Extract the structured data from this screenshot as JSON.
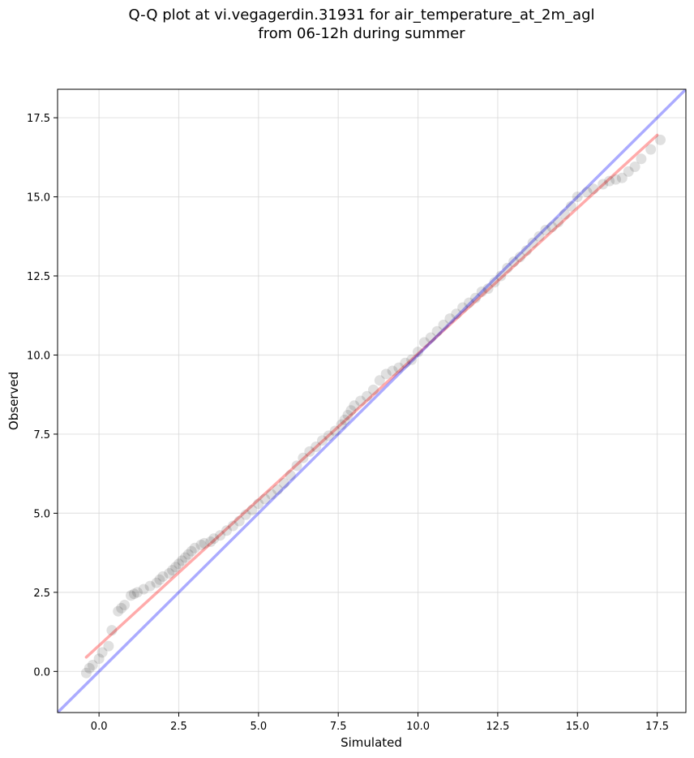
{
  "chart_data": {
    "type": "scatter",
    "title_lines": [
      "Q-Q plot at vi.vegagerdin.31931 for air_temperature_at_2m_agl",
      "from 06-12h during summer"
    ],
    "xlabel": "Simulated",
    "ylabel": "Observed",
    "xlim": [
      -1.3,
      18.4
    ],
    "ylim": [
      -1.3,
      18.4
    ],
    "xticks": [
      0.0,
      2.5,
      5.0,
      7.5,
      10.0,
      12.5,
      15.0,
      17.5
    ],
    "yticks": [
      0.0,
      2.5,
      5.0,
      7.5,
      10.0,
      12.5,
      15.0,
      17.5
    ],
    "xtick_labels": [
      "0.0",
      "2.5",
      "5.0",
      "7.5",
      "10.0",
      "12.5",
      "15.0",
      "17.5"
    ],
    "ytick_labels": [
      "0.0",
      "2.5",
      "5.0",
      "7.5",
      "10.0",
      "12.5",
      "15.0",
      "17.5"
    ],
    "grid": true,
    "series": [
      {
        "kind": "points",
        "color": "#000000",
        "x": [
          -0.4,
          -0.3,
          -0.2,
          0.0,
          0.1,
          0.3,
          0.4,
          0.6,
          0.7,
          0.8,
          1.0,
          1.1,
          1.2,
          1.4,
          1.6,
          1.8,
          1.9,
          2.0,
          2.2,
          2.3,
          2.4,
          2.5,
          2.6,
          2.7,
          2.8,
          2.9,
          3.0,
          3.2,
          3.3,
          3.5,
          3.6,
          3.8,
          4.0,
          4.2,
          4.4,
          4.6,
          4.8,
          5.0,
          5.2,
          5.4,
          5.6,
          5.8,
          6.0,
          6.2,
          6.4,
          6.6,
          6.8,
          7.0,
          7.2,
          7.4,
          7.6,
          7.7,
          7.8,
          7.9,
          8.0,
          8.2,
          8.4,
          8.6,
          8.8,
          9.0,
          9.2,
          9.4,
          9.6,
          9.8,
          10.0,
          10.2,
          10.4,
          10.6,
          10.8,
          11.0,
          11.2,
          11.4,
          11.6,
          11.8,
          12.0,
          12.2,
          12.4,
          12.6,
          12.8,
          13.0,
          13.2,
          13.4,
          13.6,
          13.8,
          14.0,
          14.2,
          14.4,
          14.6,
          14.8,
          15.0,
          15.3,
          15.5,
          15.8,
          16.0,
          16.2,
          16.4,
          16.6,
          16.8,
          17.0,
          17.3,
          17.6
        ],
        "y": [
          -0.05,
          0.1,
          0.2,
          0.4,
          0.6,
          0.8,
          1.3,
          1.9,
          2.0,
          2.1,
          2.4,
          2.45,
          2.5,
          2.6,
          2.7,
          2.8,
          2.9,
          3.0,
          3.1,
          3.2,
          3.3,
          3.4,
          3.5,
          3.6,
          3.7,
          3.8,
          3.9,
          4.0,
          4.05,
          4.1,
          4.2,
          4.3,
          4.45,
          4.6,
          4.75,
          4.95,
          5.1,
          5.3,
          5.45,
          5.6,
          5.75,
          5.95,
          6.2,
          6.5,
          6.75,
          6.95,
          7.1,
          7.3,
          7.45,
          7.6,
          7.8,
          7.95,
          8.1,
          8.25,
          8.4,
          8.55,
          8.7,
          8.9,
          9.2,
          9.4,
          9.5,
          9.6,
          9.75,
          9.85,
          10.1,
          10.4,
          10.55,
          10.75,
          10.95,
          11.15,
          11.3,
          11.5,
          11.65,
          11.8,
          12.0,
          12.1,
          12.3,
          12.5,
          12.75,
          12.95,
          13.1,
          13.3,
          13.55,
          13.75,
          13.95,
          14.05,
          14.2,
          14.45,
          14.7,
          15.0,
          15.15,
          15.25,
          15.4,
          15.5,
          15.55,
          15.6,
          15.8,
          15.95,
          16.2,
          16.5,
          16.8
        ]
      },
      {
        "kind": "line",
        "color": "#ff0000",
        "x": [
          -0.4,
          17.5
        ],
        "y": [
          0.45,
          16.95
        ]
      },
      {
        "kind": "line",
        "color": "#0000ff",
        "x": [
          -1.3,
          18.4
        ],
        "y": [
          -1.3,
          18.4
        ]
      }
    ]
  }
}
